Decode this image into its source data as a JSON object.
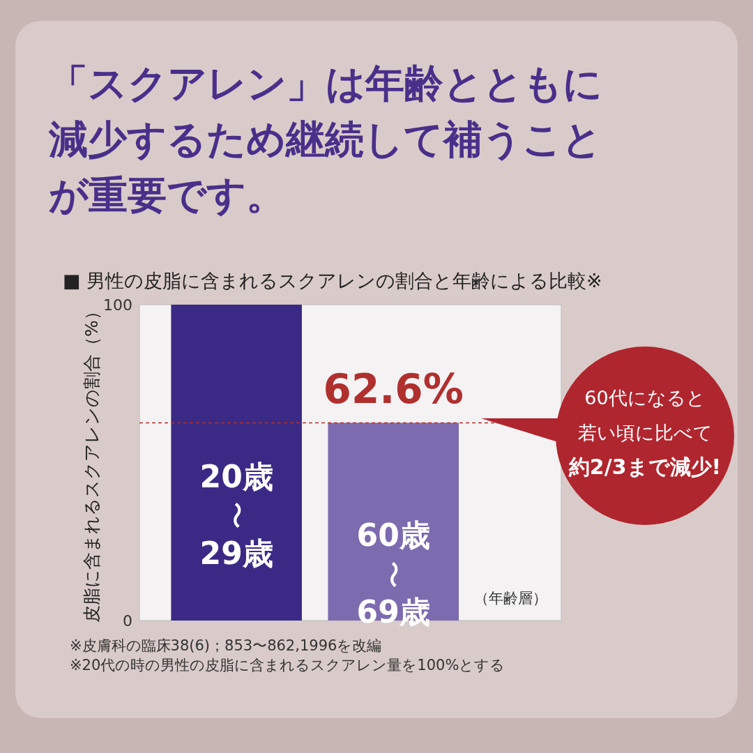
{
  "chart_data": {
    "type": "bar",
    "title": "「スクアレン」は年齢とともに減少するため継続して補うことが重要です。",
    "subtitle": "■ 男性の皮脂に含まれるスクアレンの割合と年齢による比較※",
    "ylabel": "皮脂に含まれるスクアレンの割合（%）",
    "xlabel": "（年齢層）",
    "categories": [
      "20歳〜29歳",
      "60歳〜69歳"
    ],
    "values": [
      100,
      62.6
    ],
    "colors": [
      "#3b2a85",
      "#7d6bb0"
    ],
    "value_labels": [
      null,
      "62.6%"
    ],
    "ylim": [
      0,
      100
    ],
    "yticks": [
      0,
      100
    ],
    "grid": false,
    "legend": false,
    "ref_lines": [
      {
        "axis": "y",
        "value": 62.6,
        "label": null,
        "color": "#b0302e",
        "line_style": "dashed"
      }
    ],
    "annotations": [
      "60代になると若い頃に比べて約2/3まで減少!",
      "※皮膚科の臨床38(6)；853〜862,1996を改編",
      "※20代の時の男性の皮脂に含まれるスクアレン量を100%とする"
    ]
  }
}
